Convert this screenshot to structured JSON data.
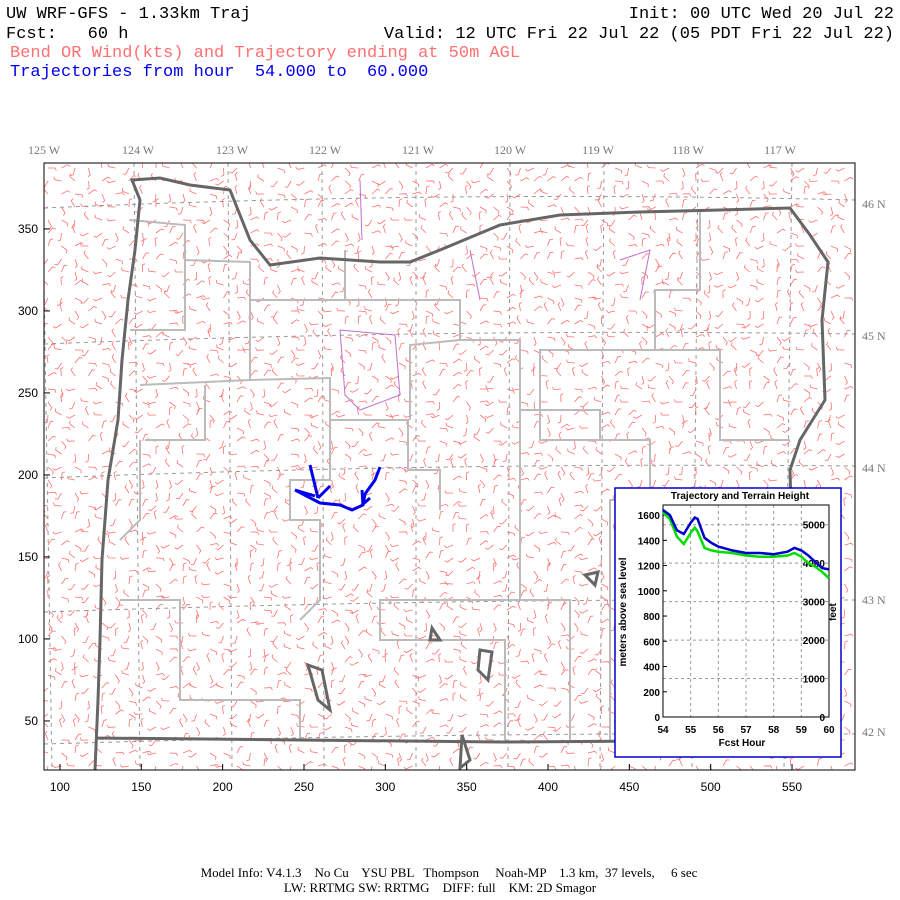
{
  "header": {
    "title": "UW WRF-GFS - 1.33km Traj",
    "init": "Init: 00 UTC Wed 20 Jul 22",
    "forecast": "Fcst:   60 h",
    "valid": "Valid: 12 UTC Fri 22 Jul 22 (05 PDT Fri 22 Jul 22)",
    "field": "Bend OR Wind(kts) and Trajectory ending at 50m AGL",
    "trajectories": "Trajectories from hour  54.000 to  60.000"
  },
  "map": {
    "xlim": [
      90.2,
      588.7
    ],
    "ylim": [
      20.1,
      390.2
    ],
    "xticks": [
      100,
      150,
      200,
      250,
      300,
      350,
      400,
      450,
      500,
      550
    ],
    "yticks": [
      50,
      100,
      150,
      200,
      250,
      300,
      350
    ],
    "lon_labels": [
      "125 W",
      "124 W",
      "123 W",
      "122 W",
      "121 W",
      "120 W",
      "119 W",
      "118 W",
      "117 W"
    ],
    "lat_labels": [
      "46 N",
      "45 N",
      "44 N",
      "43 N",
      "42 N"
    ]
  },
  "inset": {
    "type": "line",
    "title": "Trajectory and Terrain Height",
    "xlabel": "Fcst Hour",
    "ylabel": "meters above sea level",
    "y2label": "feet",
    "xlim": [
      54,
      60
    ],
    "xticks": [
      54,
      55,
      56,
      57,
      58,
      59,
      60
    ],
    "ylim": [
      0,
      1680
    ],
    "yticks": [
      0,
      200,
      400,
      600,
      800,
      1000,
      1200,
      1400,
      1600
    ],
    "y2lim": [
      0,
      5512
    ],
    "y2ticks": [
      0,
      1000,
      2000,
      3000,
      4000,
      5000
    ],
    "grid": true,
    "x": [
      54,
      54.25,
      54.5,
      54.75,
      55,
      55.15,
      55.25,
      55.5,
      55.75,
      56,
      56.5,
      57,
      57.5,
      58,
      58.5,
      58.75,
      59,
      59.25,
      59.5,
      59.75,
      60
    ],
    "series": [
      {
        "name": "terrain",
        "color": "#00dd00",
        "values": [
          1620,
          1570,
          1430,
          1370,
          1460,
          1500,
          1470,
          1340,
          1320,
          1310,
          1300,
          1280,
          1270,
          1270,
          1280,
          1300,
          1270,
          1220,
          1190,
          1150,
          1100
        ]
      },
      {
        "name": "trajectory",
        "color": "#0000cc",
        "values": [
          1640,
          1600,
          1480,
          1450,
          1540,
          1580,
          1570,
          1420,
          1380,
          1350,
          1320,
          1300,
          1300,
          1290,
          1310,
          1340,
          1320,
          1280,
          1230,
          1180,
          1170
        ]
      }
    ]
  },
  "footer": {
    "line1": "Model Info: V4.1.3    No Cu    YSU PBL   Thompson     Noah-MP    1.3 km,  37 levels,     6 sec",
    "line2": "LW: RRTMG SW: RRTMG    DIFF: full    KM: 2D Smagor"
  }
}
